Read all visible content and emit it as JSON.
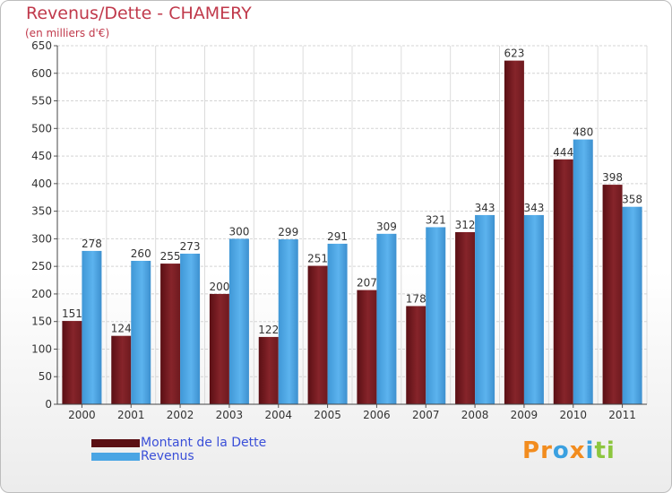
{
  "title": "Revenus/Dette - CHAMERY",
  "subtitle": "(en milliers d'€)",
  "colors": {
    "dette": "#7b1e22",
    "revenus": "#4aa5e4",
    "title": "#c0394b",
    "legend_text": "#3a4fd8"
  },
  "legend": {
    "dette_label": "Montant de la Dette",
    "revenus_label": "Revenus"
  },
  "logo": {
    "letters": [
      "P",
      "r",
      "o",
      "x",
      "i",
      "t",
      "i"
    ],
    "colors": [
      "#f28c1e",
      "#f28c1e",
      "#3aa0e0",
      "#f28c1e",
      "#3aa0e0",
      "#8cc63f",
      "#8cc63f"
    ]
  },
  "chart_data": {
    "type": "bar",
    "title": "Revenus/Dette - CHAMERY",
    "ylabel": "(en milliers d'€)",
    "xlabel": "",
    "categories": [
      "2000",
      "2001",
      "2002",
      "2003",
      "2004",
      "2005",
      "2006",
      "2007",
      "2008",
      "2009",
      "2010",
      "2011"
    ],
    "series": [
      {
        "name": "Montant de la Dette",
        "values": [
          151,
          124,
          255,
          200,
          122,
          251,
          207,
          178,
          312,
          623,
          444,
          398
        ]
      },
      {
        "name": "Revenus",
        "values": [
          278,
          260,
          273,
          300,
          299,
          291,
          309,
          321,
          343,
          343,
          480,
          358
        ]
      }
    ],
    "ylim": [
      0,
      650
    ],
    "yticks": [
      0,
      50,
      100,
      150,
      200,
      250,
      300,
      350,
      400,
      450,
      500,
      550,
      600,
      650
    ],
    "grid": true,
    "legend_position": "bottom-left"
  }
}
